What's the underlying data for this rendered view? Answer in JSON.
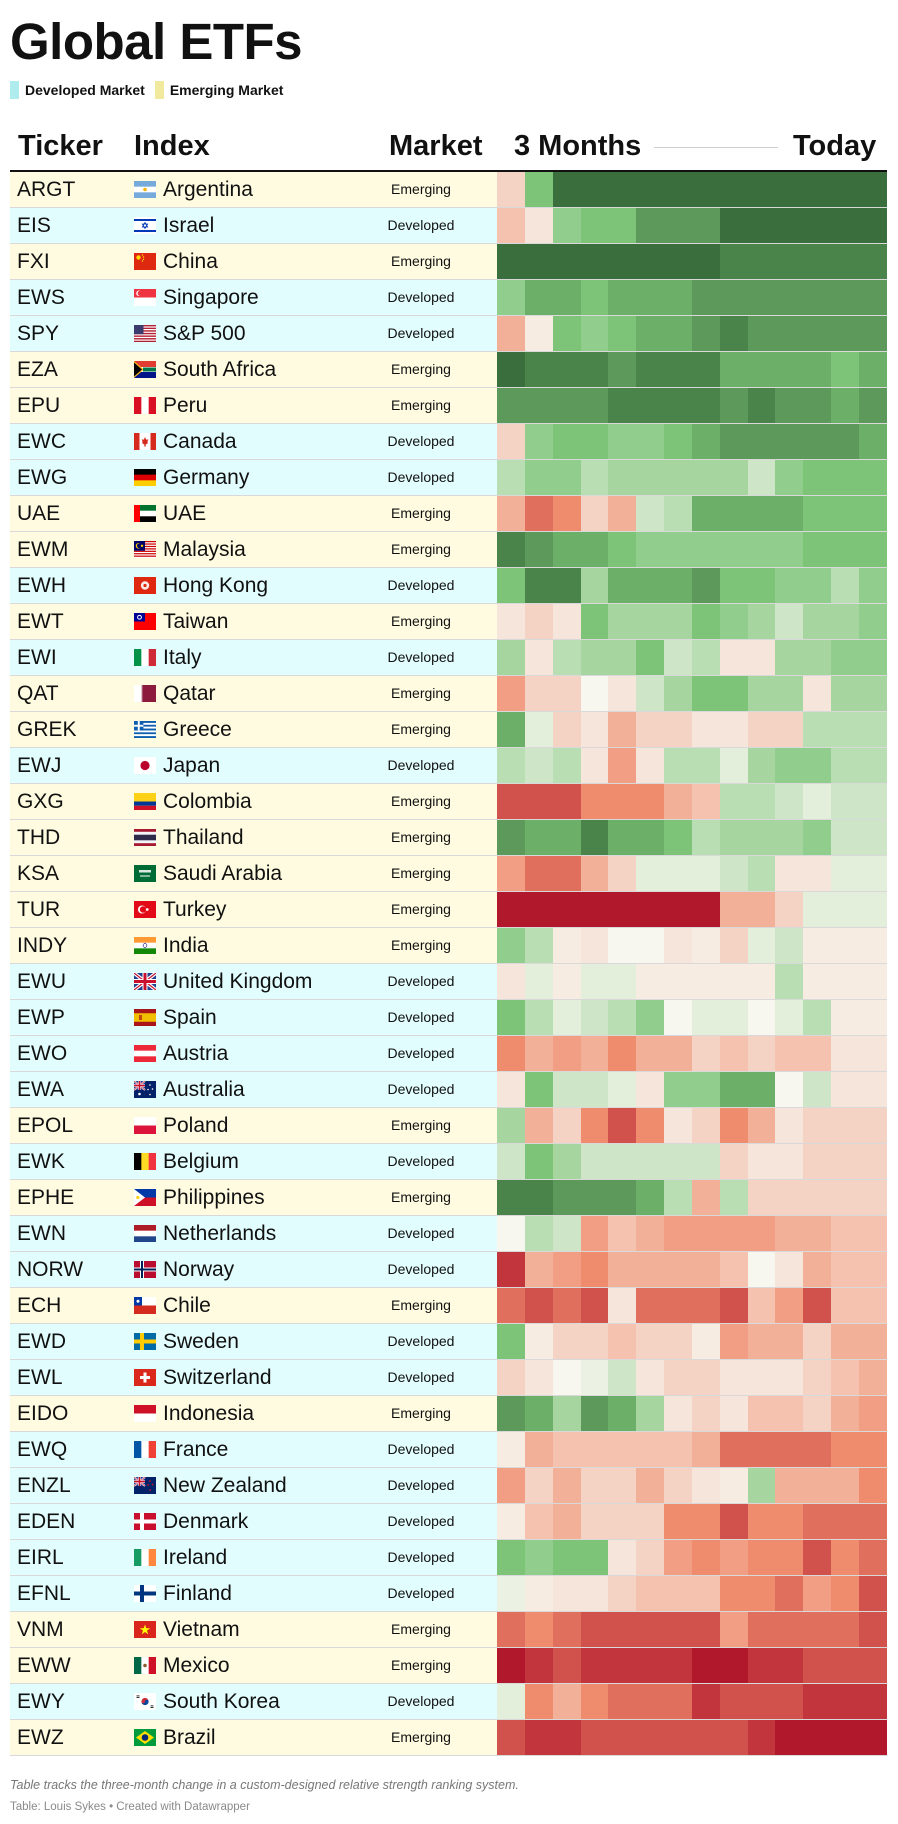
{
  "title": "Global ETFs",
  "legend": [
    {
      "label": "Developed Market",
      "color": "#aeecee"
    },
    {
      "label": "Emerging Market",
      "color": "#f1ea9e"
    }
  ],
  "columns": {
    "ticker": "Ticker",
    "index": "Index",
    "market": "Market",
    "start": "3 Months",
    "end": "Today"
  },
  "colors": {
    "developed_row": "#e2fdfe",
    "emerging_row": "#fffbe0",
    "scale_red": "#b2182b",
    "scale_neutral": "#f7f7ef",
    "scale_green": "#3a6e3c"
  },
  "chart_data": {
    "type": "heatmap",
    "title": "Global ETFs",
    "description_x": "Weekly snapshots over three months (14 columns), from 3 Months ago to Today",
    "x": [
      "3 Months",
      "",
      "",
      "",
      "",
      "",
      "",
      "",
      "",
      "",
      "",
      "",
      "",
      "Today"
    ],
    "value_scale": {
      "min": -5,
      "max": 5,
      "meaning": "negative = red (weak relative strength), positive = green (strong relative strength)"
    },
    "rows": [
      {
        "ticker": "ARGT",
        "index": "Argentina",
        "market": "Emerging",
        "flag": "argentina",
        "values": [
          -1,
          3,
          5,
          5,
          5,
          5,
          5,
          5,
          5,
          5,
          5,
          5,
          5,
          5
        ]
      },
      {
        "ticker": "EIS",
        "index": "Israel",
        "market": "Developed",
        "flag": "israel",
        "values": [
          -1.5,
          -0.5,
          2.5,
          3,
          3,
          4,
          4,
          4,
          5,
          5,
          5,
          5,
          5,
          5
        ]
      },
      {
        "ticker": "FXI",
        "index": "China",
        "market": "Emerging",
        "flag": "china",
        "values": [
          5,
          5,
          5,
          5,
          5,
          5,
          5,
          5,
          4.5,
          4.5,
          4.5,
          4.5,
          4.5,
          4.5
        ]
      },
      {
        "ticker": "EWS",
        "index": "Singapore",
        "market": "Developed",
        "flag": "singapore",
        "values": [
          2.5,
          3.5,
          3.5,
          3,
          3.5,
          3.5,
          3.5,
          4,
          4,
          4,
          4,
          4,
          4,
          4
        ]
      },
      {
        "ticker": "SPY",
        "index": "S&P 500",
        "market": "Developed",
        "flag": "usa",
        "values": [
          -2,
          -0.3,
          3,
          2.5,
          3,
          3.5,
          3.5,
          4,
          4.5,
          4,
          4,
          4,
          4,
          4
        ]
      },
      {
        "ticker": "EZA",
        "index": "South Africa",
        "market": "Emerging",
        "flag": "south_africa",
        "values": [
          5,
          4.5,
          4.5,
          4.5,
          4,
          4.5,
          4.5,
          4.5,
          3.5,
          3.5,
          3.5,
          3.5,
          3,
          3.5
        ]
      },
      {
        "ticker": "EPU",
        "index": "Peru",
        "market": "Emerging",
        "flag": "peru",
        "values": [
          4,
          4,
          4,
          4,
          4.5,
          4.5,
          4.5,
          4.5,
          4,
          4.5,
          4,
          4,
          3.5,
          4
        ]
      },
      {
        "ticker": "EWC",
        "index": "Canada",
        "market": "Developed",
        "flag": "canada",
        "values": [
          -1,
          2.5,
          3,
          3,
          2.5,
          2.5,
          3,
          3.5,
          4,
          4,
          4,
          4,
          4,
          3.5
        ]
      },
      {
        "ticker": "EWG",
        "index": "Germany",
        "market": "Developed",
        "flag": "germany",
        "values": [
          1.5,
          2.5,
          2.5,
          1.5,
          2,
          2,
          2,
          2,
          2,
          1,
          2.5,
          3,
          3,
          3
        ]
      },
      {
        "ticker": "UAE",
        "index": "UAE",
        "market": "Emerging",
        "flag": "uae",
        "values": [
          -2,
          -3.5,
          -3,
          -1,
          -2,
          1,
          1.5,
          3.5,
          3.5,
          3.5,
          3.5,
          3,
          3,
          3
        ]
      },
      {
        "ticker": "EWM",
        "index": "Malaysia",
        "market": "Emerging",
        "flag": "malaysia",
        "values": [
          4.5,
          4,
          3.5,
          3.5,
          3,
          2.5,
          2.5,
          2.5,
          2.5,
          2.5,
          2.5,
          3,
          3,
          3
        ]
      },
      {
        "ticker": "EWH",
        "index": "Hong Kong",
        "market": "Developed",
        "flag": "hong_kong",
        "values": [
          3,
          4.5,
          4.5,
          2,
          3.5,
          3.5,
          3.5,
          4,
          3,
          3,
          2.5,
          2.5,
          1.5,
          2.5
        ]
      },
      {
        "ticker": "EWT",
        "index": "Taiwan",
        "market": "Emerging",
        "flag": "taiwan",
        "values": [
          -0.5,
          -1,
          -0.5,
          3,
          2,
          2,
          2,
          3,
          2.5,
          2,
          1,
          2,
          2,
          2.5
        ]
      },
      {
        "ticker": "EWI",
        "index": "Italy",
        "market": "Developed",
        "flag": "italy",
        "values": [
          2,
          -0.5,
          1.5,
          2,
          2,
          3,
          1,
          1.5,
          -0.5,
          -0.5,
          2,
          2,
          2.5,
          2.5
        ]
      },
      {
        "ticker": "QAT",
        "index": "Qatar",
        "market": "Emerging",
        "flag": "qatar",
        "values": [
          -2.5,
          -1,
          -1,
          0,
          -0.5,
          1,
          2,
          3,
          3,
          2,
          2,
          -0.5,
          2,
          2
        ]
      },
      {
        "ticker": "GREK",
        "index": "Greece",
        "market": "Emerging",
        "flag": "greece",
        "values": [
          3.5,
          0.5,
          -1,
          -0.5,
          -2,
          -1,
          -1,
          -0.5,
          -0.5,
          -1,
          -1,
          1.5,
          1.5,
          1.5
        ]
      },
      {
        "ticker": "EWJ",
        "index": "Japan",
        "market": "Developed",
        "flag": "japan",
        "values": [
          1.5,
          1,
          1.5,
          -0.5,
          -2.5,
          -0.5,
          1.5,
          1.5,
          0.5,
          2,
          2.5,
          2.5,
          1.5,
          1.5
        ]
      },
      {
        "ticker": "GXG",
        "index": "Colombia",
        "market": "Emerging",
        "flag": "colombia",
        "values": [
          -4,
          -4,
          -4,
          -3,
          -3,
          -3,
          -2,
          -1.5,
          1.5,
          1.5,
          1,
          0.5,
          1,
          1
        ]
      },
      {
        "ticker": "THD",
        "index": "Thailand",
        "market": "Emerging",
        "flag": "thailand",
        "values": [
          4,
          3.5,
          3.5,
          4.5,
          3.5,
          3.5,
          3,
          1.5,
          2,
          2,
          2,
          2.5,
          1,
          1
        ]
      },
      {
        "ticker": "KSA",
        "index": "Saudi Arabia",
        "market": "Emerging",
        "flag": "saudi_arabia",
        "values": [
          -2.5,
          -3.5,
          -3.5,
          -2,
          -1,
          0.5,
          0.5,
          0.5,
          1,
          1.5,
          -0.5,
          -0.5,
          0.5,
          0.5
        ]
      },
      {
        "ticker": "TUR",
        "index": "Turkey",
        "market": "Emerging",
        "flag": "turkey",
        "values": [
          -5,
          -5,
          -5,
          -5,
          -5,
          -5,
          -5,
          -5,
          -2,
          -2,
          -1,
          0.5,
          0.5,
          0.5
        ]
      },
      {
        "ticker": "INDY",
        "index": "India",
        "market": "Emerging",
        "flag": "india",
        "values": [
          2.5,
          1.5,
          -0.3,
          -0.5,
          0,
          0,
          -0.5,
          -0.3,
          -1,
          0.5,
          1,
          -0.3,
          -0.3,
          -0.3
        ]
      },
      {
        "ticker": "EWU",
        "index": "United Kingdom",
        "market": "Developed",
        "flag": "uk",
        "values": [
          -0.5,
          0.5,
          -0.3,
          0.5,
          0.5,
          -0.3,
          -0.3,
          -0.3,
          -0.3,
          -0.3,
          1.5,
          -0.3,
          -0.3,
          -0.3
        ]
      },
      {
        "ticker": "EWP",
        "index": "Spain",
        "market": "Developed",
        "flag": "spain",
        "values": [
          3,
          1.5,
          0.5,
          1,
          1.5,
          2.5,
          0,
          0.5,
          0.5,
          0,
          0.5,
          1.5,
          -0.3,
          -0.3
        ]
      },
      {
        "ticker": "EWO",
        "index": "Austria",
        "market": "Developed",
        "flag": "austria",
        "values": [
          -3,
          -2,
          -2.5,
          -2,
          -3,
          -2,
          -2,
          -1,
          -1.5,
          -1,
          -1.5,
          -1.5,
          -0.5,
          -0.5
        ]
      },
      {
        "ticker": "EWA",
        "index": "Australia",
        "market": "Developed",
        "flag": "australia",
        "values": [
          -0.5,
          3,
          1,
          1,
          0.5,
          -0.5,
          2.5,
          2.5,
          3.5,
          3.5,
          0,
          1,
          -0.5,
          -0.5
        ]
      },
      {
        "ticker": "EPOL",
        "index": "Poland",
        "market": "Emerging",
        "flag": "poland",
        "values": [
          2,
          -2,
          -1,
          -3,
          -4,
          -3,
          -0.5,
          -1,
          -3,
          -2,
          -0.5,
          -1,
          -1,
          -1
        ]
      },
      {
        "ticker": "EWK",
        "index": "Belgium",
        "market": "Developed",
        "flag": "belgium",
        "values": [
          1,
          3,
          2,
          1,
          1,
          1,
          1,
          1,
          -1,
          -0.5,
          -0.5,
          -1,
          -1,
          -1
        ]
      },
      {
        "ticker": "EPHE",
        "index": "Philippines",
        "market": "Emerging",
        "flag": "philippines",
        "values": [
          4.5,
          4.5,
          4,
          4,
          4,
          3.5,
          1.5,
          -2,
          1.5,
          -1,
          -1,
          -1,
          -1,
          -1
        ]
      },
      {
        "ticker": "EWN",
        "index": "Netherlands",
        "market": "Developed",
        "flag": "netherlands",
        "values": [
          0,
          1.5,
          1,
          -2.5,
          -1.5,
          -2,
          -2.5,
          -2.5,
          -2.5,
          -2.5,
          -2,
          -2,
          -1.5,
          -1.5
        ]
      },
      {
        "ticker": "NORW",
        "index": "Norway",
        "market": "Developed",
        "flag": "norway",
        "values": [
          -4.5,
          -2,
          -2.5,
          -3,
          -2,
          -2,
          -2,
          -2,
          -1.5,
          0,
          -0.5,
          -2,
          -1.5,
          -1.5
        ]
      },
      {
        "ticker": "ECH",
        "index": "Chile",
        "market": "Emerging",
        "flag": "chile",
        "values": [
          -3.5,
          -4,
          -3.5,
          -4,
          -0.5,
          -3.5,
          -3.5,
          -3.5,
          -4,
          -1.5,
          -2.5,
          -4,
          -1.5,
          -1.5
        ]
      },
      {
        "ticker": "EWD",
        "index": "Sweden",
        "market": "Developed",
        "flag": "sweden",
        "values": [
          3,
          -0.3,
          -1,
          -1,
          -1.5,
          -1,
          -1,
          -0.3,
          -2.5,
          -2,
          -2,
          -1,
          -2,
          -2
        ]
      },
      {
        "ticker": "EWL",
        "index": "Switzerland",
        "market": "Developed",
        "flag": "switzerland",
        "values": [
          -1,
          -0.5,
          0,
          0.3,
          1,
          -0.5,
          -1,
          -1,
          -0.5,
          -0.5,
          -0.5,
          -1,
          -1.5,
          -2
        ]
      },
      {
        "ticker": "EIDO",
        "index": "Indonesia",
        "market": "Emerging",
        "flag": "indonesia",
        "values": [
          4,
          3.5,
          2,
          4,
          3.5,
          2,
          -0.5,
          -1,
          -0.5,
          -1.5,
          -1.5,
          -1,
          -2,
          -2.5
        ]
      },
      {
        "ticker": "EWQ",
        "index": "France",
        "market": "Developed",
        "flag": "france",
        "values": [
          -0.3,
          -2,
          -1.5,
          -1.5,
          -1.5,
          -1.5,
          -1.5,
          -2,
          -3.5,
          -3.5,
          -3.5,
          -3.5,
          -3,
          -3
        ]
      },
      {
        "ticker": "ENZL",
        "index": "New Zealand",
        "market": "Developed",
        "flag": "new_zealand",
        "values": [
          -2.5,
          -1,
          -2,
          -1,
          -1,
          -2,
          -1,
          -0.5,
          -0.3,
          2,
          -2,
          -2,
          -2,
          -3
        ]
      },
      {
        "ticker": "EDEN",
        "index": "Denmark",
        "market": "Developed",
        "flag": "denmark",
        "values": [
          -0.3,
          -1.5,
          -2,
          -1,
          -1,
          -1,
          -3,
          -3,
          -4,
          -3,
          -3,
          -3.5,
          -3.5,
          -3.5
        ]
      },
      {
        "ticker": "EIRL",
        "index": "Ireland",
        "market": "Developed",
        "flag": "ireland",
        "values": [
          3,
          2.5,
          3,
          3,
          -0.5,
          -1,
          -2.5,
          -3,
          -2.5,
          -3,
          -3,
          -4,
          -3,
          -3.5
        ]
      },
      {
        "ticker": "EFNL",
        "index": "Finland",
        "market": "Developed",
        "flag": "finland",
        "values": [
          0.3,
          -0.3,
          -0.5,
          -0.5,
          -1,
          -1.5,
          -1.5,
          -1.5,
          -3,
          -3,
          -3.5,
          -2.5,
          -3,
          -4
        ]
      },
      {
        "ticker": "VNM",
        "index": "Vietnam",
        "market": "Emerging",
        "flag": "vietnam",
        "values": [
          -3.5,
          -3,
          -3.5,
          -4,
          -4,
          -4,
          -4,
          -4,
          -2.5,
          -3.5,
          -3.5,
          -3.5,
          -3.5,
          -4
        ]
      },
      {
        "ticker": "EWW",
        "index": "Mexico",
        "market": "Emerging",
        "flag": "mexico",
        "values": [
          -5,
          -4.5,
          -4,
          -4.5,
          -4.5,
          -4.5,
          -4.5,
          -5,
          -5,
          -4.5,
          -4.5,
          -4,
          -4,
          -4
        ]
      },
      {
        "ticker": "EWY",
        "index": "South Korea",
        "market": "Developed",
        "flag": "south_korea",
        "values": [
          0.5,
          -3,
          -2,
          -3,
          -3.5,
          -3.5,
          -3.5,
          -4.5,
          -4,
          -4,
          -4,
          -4.5,
          -4.5,
          -4.5
        ]
      },
      {
        "ticker": "EWZ",
        "index": "Brazil",
        "market": "Emerging",
        "flag": "brazil",
        "values": [
          -4,
          -4.5,
          -4.5,
          -4,
          -4,
          -4,
          -4,
          -4,
          -4,
          -4.5,
          -5,
          -5,
          -5,
          -5
        ]
      }
    ]
  },
  "notes": "Table tracks the three-month change in a custom-designed relative strength ranking system.",
  "credit": "Table: Louis Sykes • Created with Datawrapper"
}
